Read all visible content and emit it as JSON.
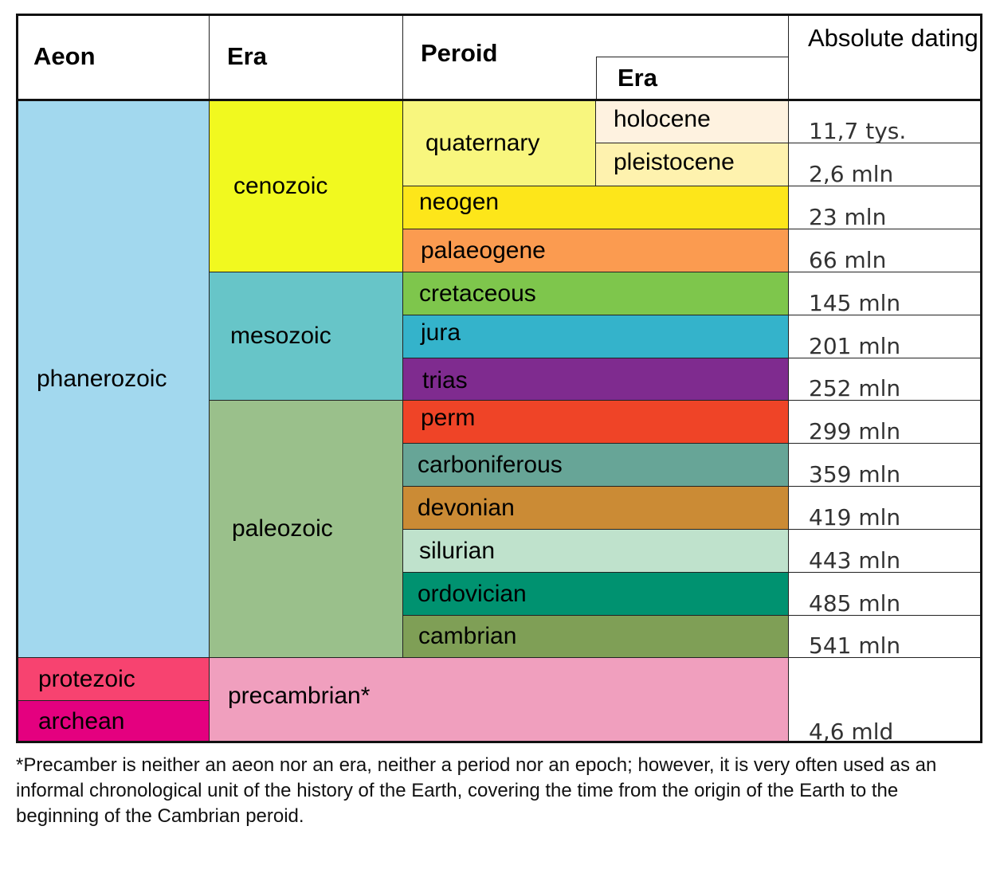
{
  "header": {
    "aeon": "Aeon",
    "era": "Era",
    "period": "Peroid",
    "epoch": "Era",
    "dating": "Absolute dating"
  },
  "aeons": [
    {
      "label": "phanerozoic",
      "color": "#a2d8ee"
    },
    {
      "label": "protezoic",
      "color": "#f74370"
    },
    {
      "label": "archean",
      "color": "#e4007f"
    }
  ],
  "eras": [
    {
      "label": "cenozoic",
      "color": "#f1f91f"
    },
    {
      "label": "mesozoic",
      "color": "#67c5c8"
    },
    {
      "label": "paleozoic",
      "color": "#9ac08b"
    },
    {
      "label": "precambrian*",
      "color": "#f09fbe"
    }
  ],
  "periods": [
    {
      "label": "quaternary",
      "color": "#f8f67e"
    },
    {
      "label": "neogen",
      "color": "#fde61a"
    },
    {
      "label": "palaeogene",
      "color": "#fb9b50"
    },
    {
      "label": "cretaceous",
      "color": "#7ec64c"
    },
    {
      "label": "jura",
      "color": "#34b3cb"
    },
    {
      "label": "trias",
      "color": "#7f2b8f"
    },
    {
      "label": "perm",
      "color": "#ef4427"
    },
    {
      "label": "carboniferous",
      "color": "#67a597"
    },
    {
      "label": "devonian",
      "color": "#cb8b35"
    },
    {
      "label": "silurian",
      "color": "#bfe2cc"
    },
    {
      "label": "ordovician",
      "color": "#009270"
    },
    {
      "label": "cambrian",
      "color": "#7f9f56"
    }
  ],
  "epochs": [
    {
      "label": "holocene",
      "color": "#fef2e0"
    },
    {
      "label": "pleistocene",
      "color": "#fef2ae"
    }
  ],
  "dating": [
    "11,7 tys.",
    "2,6 mln",
    "23 mln",
    "66 mln",
    "145 mln",
    "201 mln",
    "252 mln",
    "299 mln",
    "359 mln",
    "419 mln",
    "443 mln",
    "485 mln",
    "541 mln",
    "4,6 mld"
  ],
  "footnote": "*Precamber is neither an aeon nor an era, neither a period nor an epoch; however, it is very often used as an informal chronological unit of the history of the Earth, covering the time from the origin of the Earth to the beginning of the Cambrian peroid."
}
